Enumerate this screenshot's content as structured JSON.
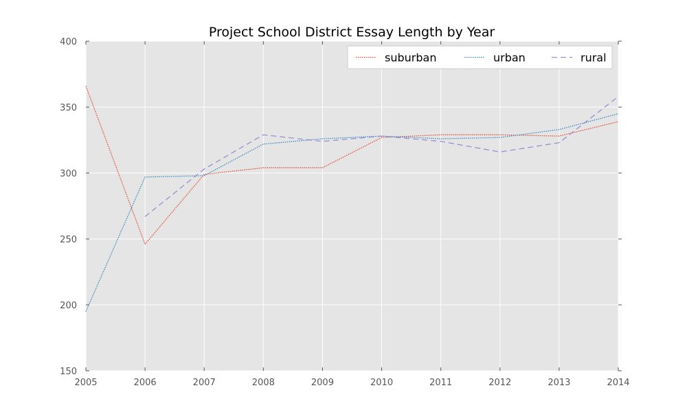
{
  "chart_data": {
    "type": "line",
    "title": "Project School District Essay Length by Year",
    "xlabel": "",
    "ylabel": "",
    "x": [
      2005,
      2006,
      2007,
      2008,
      2009,
      2010,
      2011,
      2012,
      2013,
      2014
    ],
    "xlim": [
      2005,
      2014
    ],
    "ylim": [
      150,
      400
    ],
    "xticks": [
      "2005",
      "2006",
      "2007",
      "2008",
      "2009",
      "2010",
      "2011",
      "2012",
      "2013",
      "2014"
    ],
    "yticks": [
      "150",
      "200",
      "250",
      "300",
      "350",
      "400"
    ],
    "grid": true,
    "legend_position": "top-right",
    "background": "#e5e5e5",
    "series": [
      {
        "name": "suburban",
        "color": "#e24a33",
        "dash": "dotted",
        "values": [
          366,
          246,
          299,
          304,
          304,
          327,
          329,
          329,
          328,
          339
        ]
      },
      {
        "name": "urban",
        "color": "#348abd",
        "dash": "dotted",
        "values": [
          195,
          297,
          298,
          322,
          326,
          328,
          326,
          327,
          333,
          345
        ]
      },
      {
        "name": "rural",
        "color": "#988ed5",
        "dash": "dashed",
        "values": [
          null,
          267,
          303,
          329,
          324,
          328,
          324,
          316,
          323,
          358
        ]
      }
    ]
  }
}
